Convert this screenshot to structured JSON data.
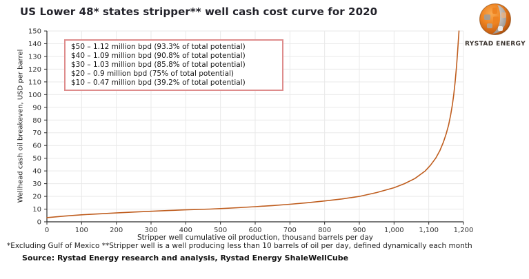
{
  "header": {
    "title": "US Lower 48* states stripper** well cash cost curve for 2020",
    "brand_name": "RYSTAD ENERGY"
  },
  "annotation_box": {
    "lines": [
      "$50 – 1.12 million bpd (93.3% of total potential)",
      "$40 – 1.09 million bpd (90.8% of total potential)",
      "$30 – 1.03 million bpd (85.8% of total potential)",
      "$20 – 0.9 million bpd (75% of total potential)",
      "$10 – 0.47 million bpd (39.2% of total potential)"
    ]
  },
  "chart_data": {
    "type": "line",
    "title": "US Lower 48* states stripper** well cash cost curve for 2020",
    "xlabel": "Stripper well cumulative oil production, thousand barrels per day",
    "ylabel": "Wellhead cash oil breakeven, USD per barrel",
    "xlim": [
      0,
      1200
    ],
    "ylim": [
      0,
      150
    ],
    "x_ticks": [
      0,
      100,
      200,
      300,
      400,
      500,
      600,
      700,
      800,
      900,
      1000,
      1100,
      1200
    ],
    "x_tick_labels": [
      "0",
      "100",
      "200",
      "300",
      "400",
      "500",
      "600",
      "700",
      "800",
      "900",
      "1,000",
      "1,100",
      "1,200"
    ],
    "y_ticks": [
      0,
      10,
      20,
      30,
      40,
      50,
      60,
      70,
      80,
      90,
      100,
      110,
      120,
      130,
      140,
      150
    ],
    "grid": true,
    "legend": false,
    "line_color": "#bf5d1e",
    "series": [
      {
        "name": "Stripper well cash cost curve 2020",
        "points": [
          [
            0,
            3.3
          ],
          [
            50,
            4.5
          ],
          [
            100,
            5.5
          ],
          [
            150,
            6.3
          ],
          [
            200,
            7.0
          ],
          [
            250,
            7.7
          ],
          [
            300,
            8.3
          ],
          [
            350,
            8.9
          ],
          [
            400,
            9.4
          ],
          [
            470,
            10.0
          ],
          [
            500,
            10.4
          ],
          [
            550,
            11.1
          ],
          [
            600,
            11.9
          ],
          [
            650,
            12.8
          ],
          [
            700,
            13.8
          ],
          [
            750,
            15.0
          ],
          [
            800,
            16.4
          ],
          [
            850,
            18.0
          ],
          [
            900,
            20.0
          ],
          [
            950,
            23.0
          ],
          [
            1000,
            26.8
          ],
          [
            1030,
            30.0
          ],
          [
            1060,
            34.0
          ],
          [
            1090,
            40.0
          ],
          [
            1105,
            44.5
          ],
          [
            1120,
            50.0
          ],
          [
            1132,
            56.0
          ],
          [
            1142,
            62.5
          ],
          [
            1150,
            69.0
          ],
          [
            1157,
            76.0
          ],
          [
            1163,
            84.0
          ],
          [
            1168,
            92.0
          ],
          [
            1172,
            100.0
          ],
          [
            1176,
            110.0
          ],
          [
            1180,
            122.0
          ],
          [
            1183,
            133.0
          ],
          [
            1185,
            142.0
          ],
          [
            1187,
            150.0
          ]
        ]
      }
    ],
    "key_points": [
      {
        "breakeven_usd": 50,
        "cumulative_million_bpd": 1.12,
        "share_of_total_potential": "93.3%"
      },
      {
        "breakeven_usd": 40,
        "cumulative_million_bpd": 1.09,
        "share_of_total_potential": "90.8%"
      },
      {
        "breakeven_usd": 30,
        "cumulative_million_bpd": 1.03,
        "share_of_total_potential": "85.8%"
      },
      {
        "breakeven_usd": 20,
        "cumulative_million_bpd": 0.9,
        "share_of_total_potential": "75%"
      },
      {
        "breakeven_usd": 10,
        "cumulative_million_bpd": 0.47,
        "share_of_total_potential": "39.2%"
      }
    ]
  },
  "footer": {
    "footnote": "*Excluding Gulf of Mexico **Stripper well is a well producing less than 10 barrels of oil per day, defined dynamically each month",
    "source": "Source: Rystad Energy research and analysis, Rystad Energy ShaleWellCube"
  },
  "colors": {
    "accent_orange": "#e87a1e",
    "grid": "#e9e9e9",
    "axis": "#2b2b2b",
    "tick_text": "#333333",
    "annotation_border": "#de8c8c",
    "curve": "#bf5d1e"
  }
}
